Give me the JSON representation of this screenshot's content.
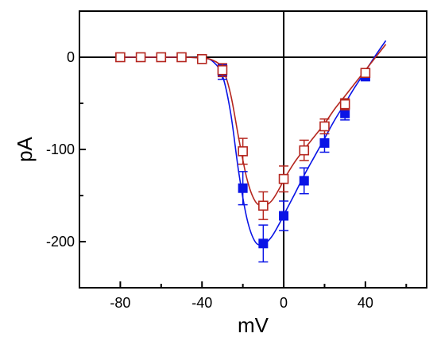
{
  "chart_data": {
    "type": "scatter",
    "xlabel": "mV",
    "ylabel": "pA",
    "xlim": [
      -100,
      70
    ],
    "ylim": [
      -250,
      50
    ],
    "x_ticks": [
      -80,
      -40,
      0,
      40
    ],
    "x_tick_labels": [
      "-80",
      "-40",
      "0",
      "40"
    ],
    "y_ticks": [
      0,
      -100,
      -200
    ],
    "y_tick_labels": [
      "0",
      "-100",
      "-200"
    ],
    "zero_lines": true,
    "grid": false,
    "legend": "none",
    "series": [
      {
        "marker": "filled-square",
        "color": "#0a14e6",
        "x": [
          -80,
          -70,
          -60,
          -50,
          -40,
          -30,
          -20,
          -10,
          0,
          10,
          20,
          30,
          40
        ],
        "y": [
          0,
          0,
          0,
          0,
          -2,
          -16,
          -142,
          -202,
          -172,
          -134,
          -93,
          -61,
          -21
        ],
        "err": [
          0,
          0,
          0,
          0,
          3,
          8,
          18,
          20,
          16,
          14,
          10,
          7,
          4
        ],
        "fit_x": [
          -80,
          -50,
          -40,
          -35,
          -30,
          -26,
          -22,
          -18,
          -14,
          -10,
          -6,
          -2,
          0,
          5,
          10,
          15,
          20,
          25,
          30,
          35,
          40,
          45,
          50
        ],
        "fit_y": [
          0,
          0,
          -1,
          -4,
          -20,
          -60,
          -125,
          -175,
          -200,
          -203,
          -195,
          -180,
          -171,
          -150,
          -128,
          -108,
          -88,
          -68,
          -50,
          -32,
          -15,
          2,
          18
        ]
      },
      {
        "marker": "open-square",
        "color": "#b5261e",
        "x": [
          -80,
          -70,
          -60,
          -50,
          -40,
          -30,
          -20,
          -10,
          0,
          10,
          20,
          30,
          40
        ],
        "y": [
          0,
          0,
          0,
          0,
          -2,
          -14,
          -102,
          -161,
          -132,
          -101,
          -75,
          -51,
          -17
        ],
        "err": [
          0,
          0,
          0,
          0,
          3,
          7,
          14,
          15,
          14,
          11,
          8,
          6,
          4
        ],
        "fit_x": [
          -80,
          -50,
          -40,
          -35,
          -30,
          -26,
          -22,
          -18,
          -14,
          -10,
          -6,
          -2,
          0,
          5,
          10,
          15,
          20,
          25,
          30,
          35,
          40,
          45,
          50
        ],
        "fit_y": [
          0,
          0,
          -1,
          -3,
          -12,
          -40,
          -88,
          -132,
          -156,
          -161,
          -156,
          -142,
          -133,
          -115,
          -100,
          -86,
          -72,
          -56,
          -42,
          -28,
          -14,
          0,
          14
        ]
      }
    ]
  }
}
